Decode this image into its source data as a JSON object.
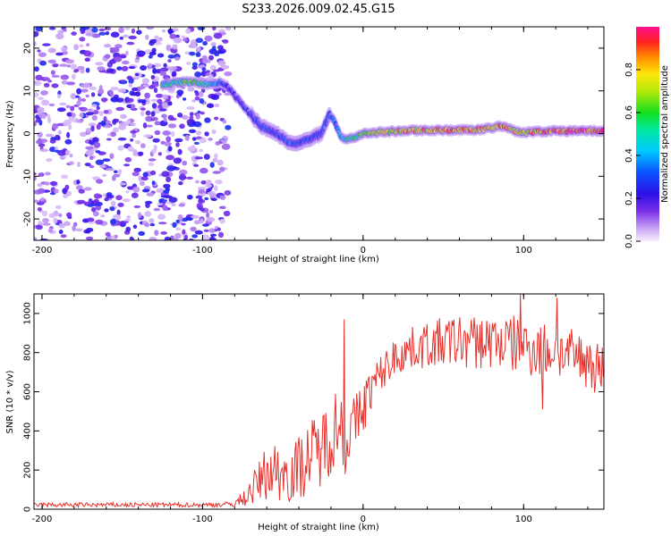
{
  "title": "S233.2026.009.02.45.G15",
  "chart_data": [
    {
      "type": "heatmap",
      "panel": "spectrogram",
      "xlabel": "Height of straight line (km)",
      "ylabel": "Frequency (Hz)",
      "xlim": [
        -205,
        150
      ],
      "ylim": [
        -25,
        25
      ],
      "xticks": [
        -200,
        -100,
        0,
        100
      ],
      "yticks": [
        -20,
        -10,
        0,
        10,
        20
      ],
      "xtick_labels": [
        "-200",
        "-100",
        "0",
        "100"
      ],
      "ytick_labels": [
        "-20",
        "-10",
        "0",
        "10",
        "20"
      ],
      "noise_region_x": [
        -205,
        -80
      ],
      "ridge": {
        "x": [
          -125,
          -115,
          -105,
          -95,
          -88,
          -82,
          -76,
          -70,
          -64,
          -60,
          -56,
          -50,
          -44,
          -38,
          -32,
          -26,
          -21,
          -18,
          -14,
          -10,
          -5,
          0,
          10,
          20,
          30,
          40,
          50,
          60,
          70,
          80,
          85,
          90,
          95,
          100,
          110,
          120,
          130,
          140,
          150
        ],
        "freq": [
          11.5,
          12,
          12,
          11.5,
          12,
          10,
          7,
          4.5,
          2,
          1,
          0.5,
          -1,
          -2.5,
          -2,
          -1,
          0,
          4.5,
          3,
          -0.5,
          -1.5,
          -0.8,
          0,
          0.3,
          0.5,
          0.7,
          0.8,
          0.8,
          0.8,
          0.9,
          1.2,
          1.8,
          1.5,
          0.5,
          0.2,
          0.5,
          0.6,
          0.6,
          0.6,
          0.6
        ],
        "amplitude": [
          0.5,
          0.6,
          0.65,
          0.5,
          0.3,
          0.2,
          0.25,
          0.3,
          0.3,
          0.35,
          0.3,
          0.3,
          0.35,
          0.3,
          0.3,
          0.3,
          0.4,
          0.35,
          0.4,
          0.55,
          0.6,
          0.7,
          0.75,
          0.8,
          0.85,
          0.9,
          0.9,
          0.9,
          0.9,
          0.85,
          0.9,
          0.85,
          0.8,
          0.8,
          0.9,
          0.95,
          0.95,
          0.95,
          0.95
        ]
      },
      "colorbar": {
        "label": "Normalized spectral amplitude",
        "range": [
          0,
          1
        ],
        "ticks": [
          0.0,
          0.2,
          0.4,
          0.6,
          0.8
        ],
        "tick_labels": [
          "0.0",
          "0.2",
          "0.4",
          "0.6",
          "0.8"
        ]
      }
    },
    {
      "type": "line",
      "panel": "snr",
      "xlabel": "Height of straight line (km)",
      "ylabel": "SNR (10 * v/v)",
      "xlim": [
        -205,
        150
      ],
      "ylim": [
        0,
        1100
      ],
      "xticks": [
        -200,
        -100,
        0,
        100
      ],
      "yticks": [
        0,
        200,
        400,
        600,
        800,
        1000
      ],
      "xtick_labels": [
        "-200",
        "-100",
        "0",
        "100"
      ],
      "ytick_labels": [
        "0",
        "200",
        "400",
        "600",
        "800",
        "1000"
      ],
      "series": [
        {
          "name": "SNR",
          "color": "#e8302b",
          "envelope_x": [
            -205,
            -100,
            -82,
            -75,
            -70,
            -65,
            -60,
            -55,
            -50,
            -45,
            -40,
            -35,
            -30,
            -25,
            -20,
            -15,
            -10,
            -5,
            0,
            5,
            10,
            15,
            20,
            30,
            40,
            50,
            60,
            70,
            80,
            90,
            100,
            110,
            120,
            130,
            140,
            150
          ],
          "envelope_mean": [
            22,
            22,
            25,
            50,
            90,
            140,
            190,
            200,
            180,
            190,
            210,
            260,
            290,
            320,
            400,
            440,
            380,
            430,
            520,
            620,
            680,
            730,
            780,
            820,
            840,
            850,
            860,
            850,
            860,
            850,
            830,
            820,
            800,
            780,
            760,
            700
          ],
          "envelope_spread": [
            12,
            12,
            14,
            40,
            70,
            110,
            140,
            150,
            150,
            160,
            170,
            180,
            190,
            200,
            220,
            200,
            180,
            160,
            140,
            120,
            100,
            100,
            100,
            110,
            120,
            130,
            140,
            140,
            150,
            150,
            150,
            150,
            140,
            140,
            140,
            150
          ],
          "spikes": [
            {
              "x": -12,
              "y": 970
            },
            {
              "x": -11,
              "y": 180
            },
            {
              "x": 98,
              "y": 1100
            },
            {
              "x": 121,
              "y": 1080
            },
            {
              "x": 112,
              "y": 510
            }
          ]
        }
      ]
    }
  ]
}
